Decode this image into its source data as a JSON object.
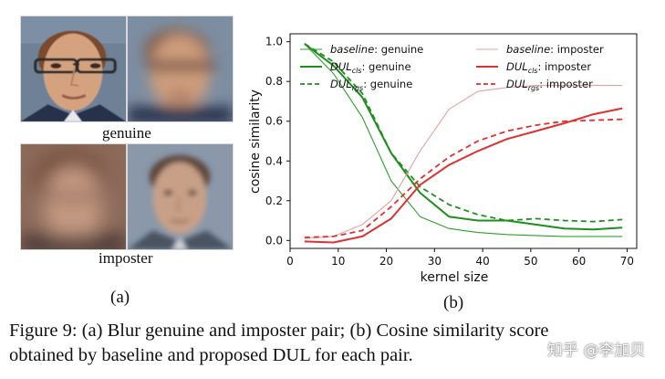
{
  "figure_a": {
    "genuine_label": "genuine",
    "imposter_label": "imposter",
    "panel_tag": "(a)"
  },
  "figure_b": {
    "panel_tag": "(b)"
  },
  "caption": {
    "line1": "Figure 9: (a) Blur genuine and imposter pair; (b) Cosine similarity score",
    "line2": "obtained by baseline and proposed DUL for each pair."
  },
  "watermark": {
    "text": "知乎 @李加贝"
  },
  "chart_data": {
    "type": "line",
    "xlabel": "kernel size",
    "ylabel": "cosine similarity",
    "xlim": [
      0,
      72
    ],
    "ylim": [
      -0.04,
      1.04
    ],
    "xticks": [
      "0",
      "10",
      "20",
      "30",
      "40",
      "50",
      "60",
      "70"
    ],
    "yticks": [
      "0.0",
      "0.2",
      "0.4",
      "0.6",
      "0.8",
      "1.0"
    ],
    "grid": false,
    "legend": "top, two columns",
    "x": [
      3,
      9,
      15,
      21,
      27,
      33,
      39,
      45,
      51,
      57,
      63,
      69
    ],
    "series": [
      {
        "name": "baseline: genuine",
        "name_prefix": "baseline",
        "name_suffix": ": genuine",
        "color": "#2ca02c",
        "style": "thin",
        "values": [
          0.99,
          0.84,
          0.62,
          0.3,
          0.12,
          0.06,
          0.04,
          0.03,
          0.025,
          0.02,
          0.02,
          0.02
        ]
      },
      {
        "name": "DULcls: genuine",
        "name_prefix": "DUL",
        "name_sub": "cls",
        "name_suffix": ": genuine",
        "color": "#1e8f1e",
        "style": "solid",
        "values": [
          0.99,
          0.88,
          0.72,
          0.44,
          0.24,
          0.12,
          0.1,
          0.1,
          0.08,
          0.06,
          0.055,
          0.065
        ]
      },
      {
        "name": "DULrgs: genuine",
        "name_prefix": "DUL",
        "name_sub": "rgs",
        "name_suffix": ": genuine",
        "color": "#1e8f1e",
        "style": "dashed",
        "values": [
          0.99,
          0.9,
          0.74,
          0.44,
          0.27,
          0.18,
          0.13,
          0.1,
          0.11,
          0.1,
          0.095,
          0.105
        ]
      },
      {
        "name": "baseline: imposter",
        "name_prefix": "baseline",
        "name_suffix": ": imposter",
        "color": "#e8a0a0",
        "style": "thin",
        "values": [
          0.01,
          0.02,
          0.08,
          0.2,
          0.45,
          0.66,
          0.75,
          0.77,
          0.78,
          0.78,
          0.78,
          0.78
        ]
      },
      {
        "name": "DULcls: imposter",
        "name_prefix": "DUL",
        "name_sub": "cls",
        "name_suffix": ": imposter",
        "color": "#e03030",
        "style": "solid",
        "values": [
          -0.005,
          -0.01,
          0.02,
          0.11,
          0.28,
          0.38,
          0.45,
          0.51,
          0.55,
          0.59,
          0.635,
          0.665
        ]
      },
      {
        "name": "DULrgs: imposter",
        "name_prefix": "DUL",
        "name_sub": "rgs",
        "name_suffix": ": imposter",
        "color": "#e03030",
        "style": "dashed",
        "values": [
          0.015,
          0.02,
          0.05,
          0.17,
          0.31,
          0.42,
          0.5,
          0.55,
          0.58,
          0.6,
          0.605,
          0.61
        ]
      }
    ]
  }
}
